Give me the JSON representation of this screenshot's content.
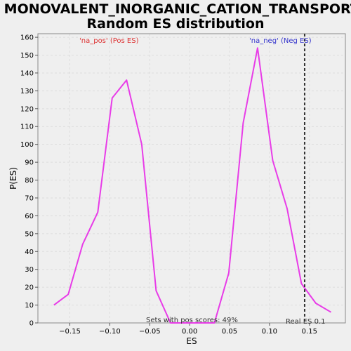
{
  "chart_data": {
    "type": "line",
    "title": "MONOVALENT_INORGANIC_CATION_TRANSPORT:",
    "subtitle": "Random ES distribution",
    "xlabel": "ES",
    "ylabel": "P(ES)",
    "xlim": [
      -0.19,
      0.195
    ],
    "ylim": [
      0,
      162
    ],
    "xticks": [
      -0.15,
      -0.1,
      -0.05,
      0.0,
      0.05,
      0.1,
      0.15
    ],
    "xtick_labels": [
      "−0.15",
      "−0.10",
      "−0.05",
      "0.00",
      "0.05",
      "0.10",
      "0.15"
    ],
    "yticks": [
      0,
      10,
      20,
      30,
      40,
      50,
      60,
      70,
      80,
      90,
      100,
      110,
      120,
      130,
      140,
      150,
      160
    ],
    "grid": true,
    "series": [
      {
        "color": "#e83ce8",
        "x": [
          -0.17,
          -0.152,
          -0.134,
          -0.115,
          -0.097,
          -0.079,
          -0.06,
          -0.042,
          -0.024,
          -0.006,
          0.012,
          0.031,
          0.049,
          0.067,
          0.085,
          0.104,
          0.122,
          0.14,
          0.158,
          0.177
        ],
        "y": [
          10,
          16,
          44,
          62,
          126,
          136,
          100,
          18,
          0,
          0,
          0,
          0,
          28,
          112,
          154,
          91,
          64,
          22,
          11,
          6
        ]
      }
    ],
    "real_es": 0.144,
    "annotations": {
      "pos": "'na_pos' (Pos ES)",
      "neg": "'na_neg' (Neg ES)",
      "sets": "Sets with pos scores: 49%",
      "real": "Real ES 0.1"
    },
    "colors": {
      "pos": "#dd3333",
      "neg": "#3333cc",
      "line": "#e83ce8",
      "real_es_line": "#333333"
    }
  }
}
